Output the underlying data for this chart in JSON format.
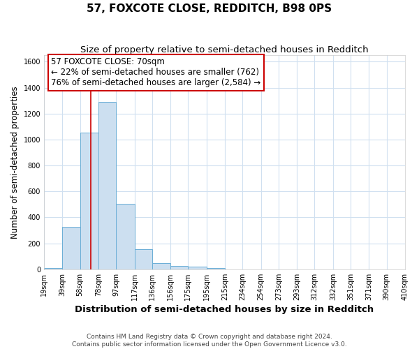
{
  "title": "57, FOXCOTE CLOSE, REDDITCH, B98 0PS",
  "subtitle": "Size of property relative to semi-detached houses in Redditch",
  "xlabel": "Distribution of semi-detached houses by size in Redditch",
  "ylabel": "Number of semi-detached properties",
  "bar_values": [
    10,
    325,
    1055,
    1290,
    505,
    155,
    50,
    25,
    20,
    10,
    0,
    0,
    0,
    0,
    0,
    0,
    0,
    0,
    0,
    0
  ],
  "bin_edges": [
    19,
    39,
    58,
    78,
    97,
    117,
    136,
    156,
    175,
    195,
    215,
    234,
    254,
    273,
    293,
    312,
    332,
    351,
    371,
    390,
    410
  ],
  "tick_labels": [
    "19sqm",
    "39sqm",
    "58sqm",
    "78sqm",
    "97sqm",
    "117sqm",
    "136sqm",
    "156sqm",
    "175sqm",
    "195sqm",
    "215sqm",
    "234sqm",
    "254sqm",
    "273sqm",
    "293sqm",
    "312sqm",
    "332sqm",
    "351sqm",
    "371sqm",
    "390sqm",
    "410sqm"
  ],
  "bar_color": "#ccdff0",
  "bar_edge_color": "#6aaed6",
  "vline_x": 70,
  "vline_color": "#cc0000",
  "annotation_text": "57 FOXCOTE CLOSE: 70sqm\n← 22% of semi-detached houses are smaller (762)\n76% of semi-detached houses are larger (2,584) →",
  "annotation_box_edge": "#cc0000",
  "ylim": [
    0,
    1650
  ],
  "yticks": [
    0,
    200,
    400,
    600,
    800,
    1000,
    1200,
    1400,
    1600
  ],
  "footer1": "Contains HM Land Registry data © Crown copyright and database right 2024.",
  "footer2": "Contains public sector information licensed under the Open Government Licence v3.0.",
  "fig_background": "#ffffff",
  "plot_background": "#ffffff",
  "grid_color": "#d0e0f0",
  "title_fontsize": 11,
  "subtitle_fontsize": 9.5,
  "xlabel_fontsize": 9.5,
  "ylabel_fontsize": 8.5,
  "tick_fontsize": 7,
  "annotation_fontsize": 8.5,
  "footer_fontsize": 6.5
}
